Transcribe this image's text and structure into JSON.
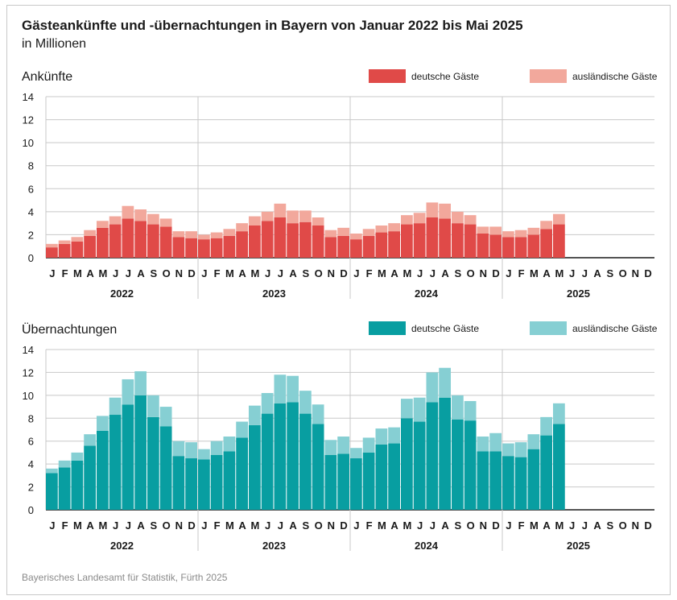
{
  "header": {
    "title": "Gästeankünfte und -übernachtungen in Bayern von Januar 2022 bis Mai 2025",
    "subtitle": "in Millionen"
  },
  "footer": {
    "source": "Bayerisches Landesamt für Statistik, Fürth 2025"
  },
  "colors": {
    "ank_de": "#e04a48",
    "ank_aus": "#f2a89c",
    "ueb_de": "#089ea1",
    "ueb_aus": "#86cfd3",
    "grid": "#c8c8c8",
    "axis": "#1a1a1a"
  },
  "chart_data": [
    {
      "type": "bar",
      "stacked": true,
      "title": "Ankünfte",
      "month_labels": [
        "J",
        "F",
        "M",
        "A",
        "M",
        "J",
        "J",
        "A",
        "S",
        "O",
        "N",
        "D"
      ],
      "years": [
        "2022",
        "2023",
        "2024",
        "2025"
      ],
      "yticks": [
        0,
        2,
        4,
        6,
        8,
        10,
        12,
        14
      ],
      "ylim": [
        0,
        14
      ],
      "grid": true,
      "legend_position": "top-right",
      "series": [
        {
          "name": "deutsche Gäste",
          "color": "#e04a48",
          "values": [
            0.9,
            1.2,
            1.4,
            1.9,
            2.6,
            2.9,
            3.4,
            3.2,
            2.9,
            2.7,
            1.8,
            1.7,
            1.6,
            1.7,
            1.9,
            2.3,
            2.8,
            3.2,
            3.5,
            3.0,
            3.1,
            2.8,
            1.8,
            1.9,
            1.6,
            1.9,
            2.2,
            2.3,
            2.9,
            3.0,
            3.5,
            3.4,
            3.0,
            2.9,
            2.1,
            2.0,
            1.8,
            1.8,
            2.0,
            2.5,
            2.9
          ]
        },
        {
          "name": "ausländische Gäste",
          "color": "#f2a89c",
          "values": [
            0.3,
            0.3,
            0.4,
            0.5,
            0.6,
            0.7,
            1.1,
            1.0,
            0.9,
            0.7,
            0.5,
            0.6,
            0.4,
            0.5,
            0.6,
            0.7,
            0.8,
            0.8,
            1.2,
            1.1,
            1.0,
            0.7,
            0.6,
            0.7,
            0.5,
            0.6,
            0.6,
            0.7,
            0.8,
            0.9,
            1.3,
            1.3,
            1.0,
            0.8,
            0.6,
            0.7,
            0.5,
            0.6,
            0.6,
            0.7,
            0.9
          ]
        }
      ]
    },
    {
      "type": "bar",
      "stacked": true,
      "title": "Übernachtungen",
      "month_labels": [
        "J",
        "F",
        "M",
        "A",
        "M",
        "J",
        "J",
        "A",
        "S",
        "O",
        "N",
        "D"
      ],
      "years": [
        "2022",
        "2023",
        "2024",
        "2025"
      ],
      "yticks": [
        0,
        2,
        4,
        6,
        8,
        10,
        12,
        14
      ],
      "ylim": [
        0,
        14
      ],
      "grid": true,
      "legend_position": "top-right",
      "series": [
        {
          "name": "deutsche Gäste",
          "color": "#089ea1",
          "values": [
            3.2,
            3.7,
            4.3,
            5.6,
            6.9,
            8.3,
            9.2,
            10.0,
            8.1,
            7.3,
            4.7,
            4.5,
            4.4,
            4.8,
            5.1,
            6.3,
            7.4,
            8.4,
            9.3,
            9.4,
            8.4,
            7.5,
            4.8,
            4.9,
            4.5,
            5.0,
            5.7,
            5.8,
            8.0,
            7.7,
            9.4,
            9.8,
            7.9,
            7.8,
            5.1,
            5.1,
            4.7,
            4.6,
            5.3,
            6.5,
            7.5
          ]
        },
        {
          "name": "ausländische Gäste",
          "color": "#86cfd3",
          "values": [
            0.4,
            0.6,
            0.7,
            1.0,
            1.3,
            1.5,
            2.2,
            2.1,
            1.9,
            1.7,
            1.3,
            1.4,
            0.9,
            1.2,
            1.3,
            1.4,
            1.7,
            1.8,
            2.5,
            2.3,
            2.0,
            1.7,
            1.3,
            1.5,
            0.9,
            1.3,
            1.4,
            1.4,
            1.7,
            2.1,
            2.6,
            2.6,
            2.1,
            1.7,
            1.3,
            1.6,
            1.1,
            1.3,
            1.3,
            1.6,
            1.8
          ]
        }
      ]
    }
  ]
}
